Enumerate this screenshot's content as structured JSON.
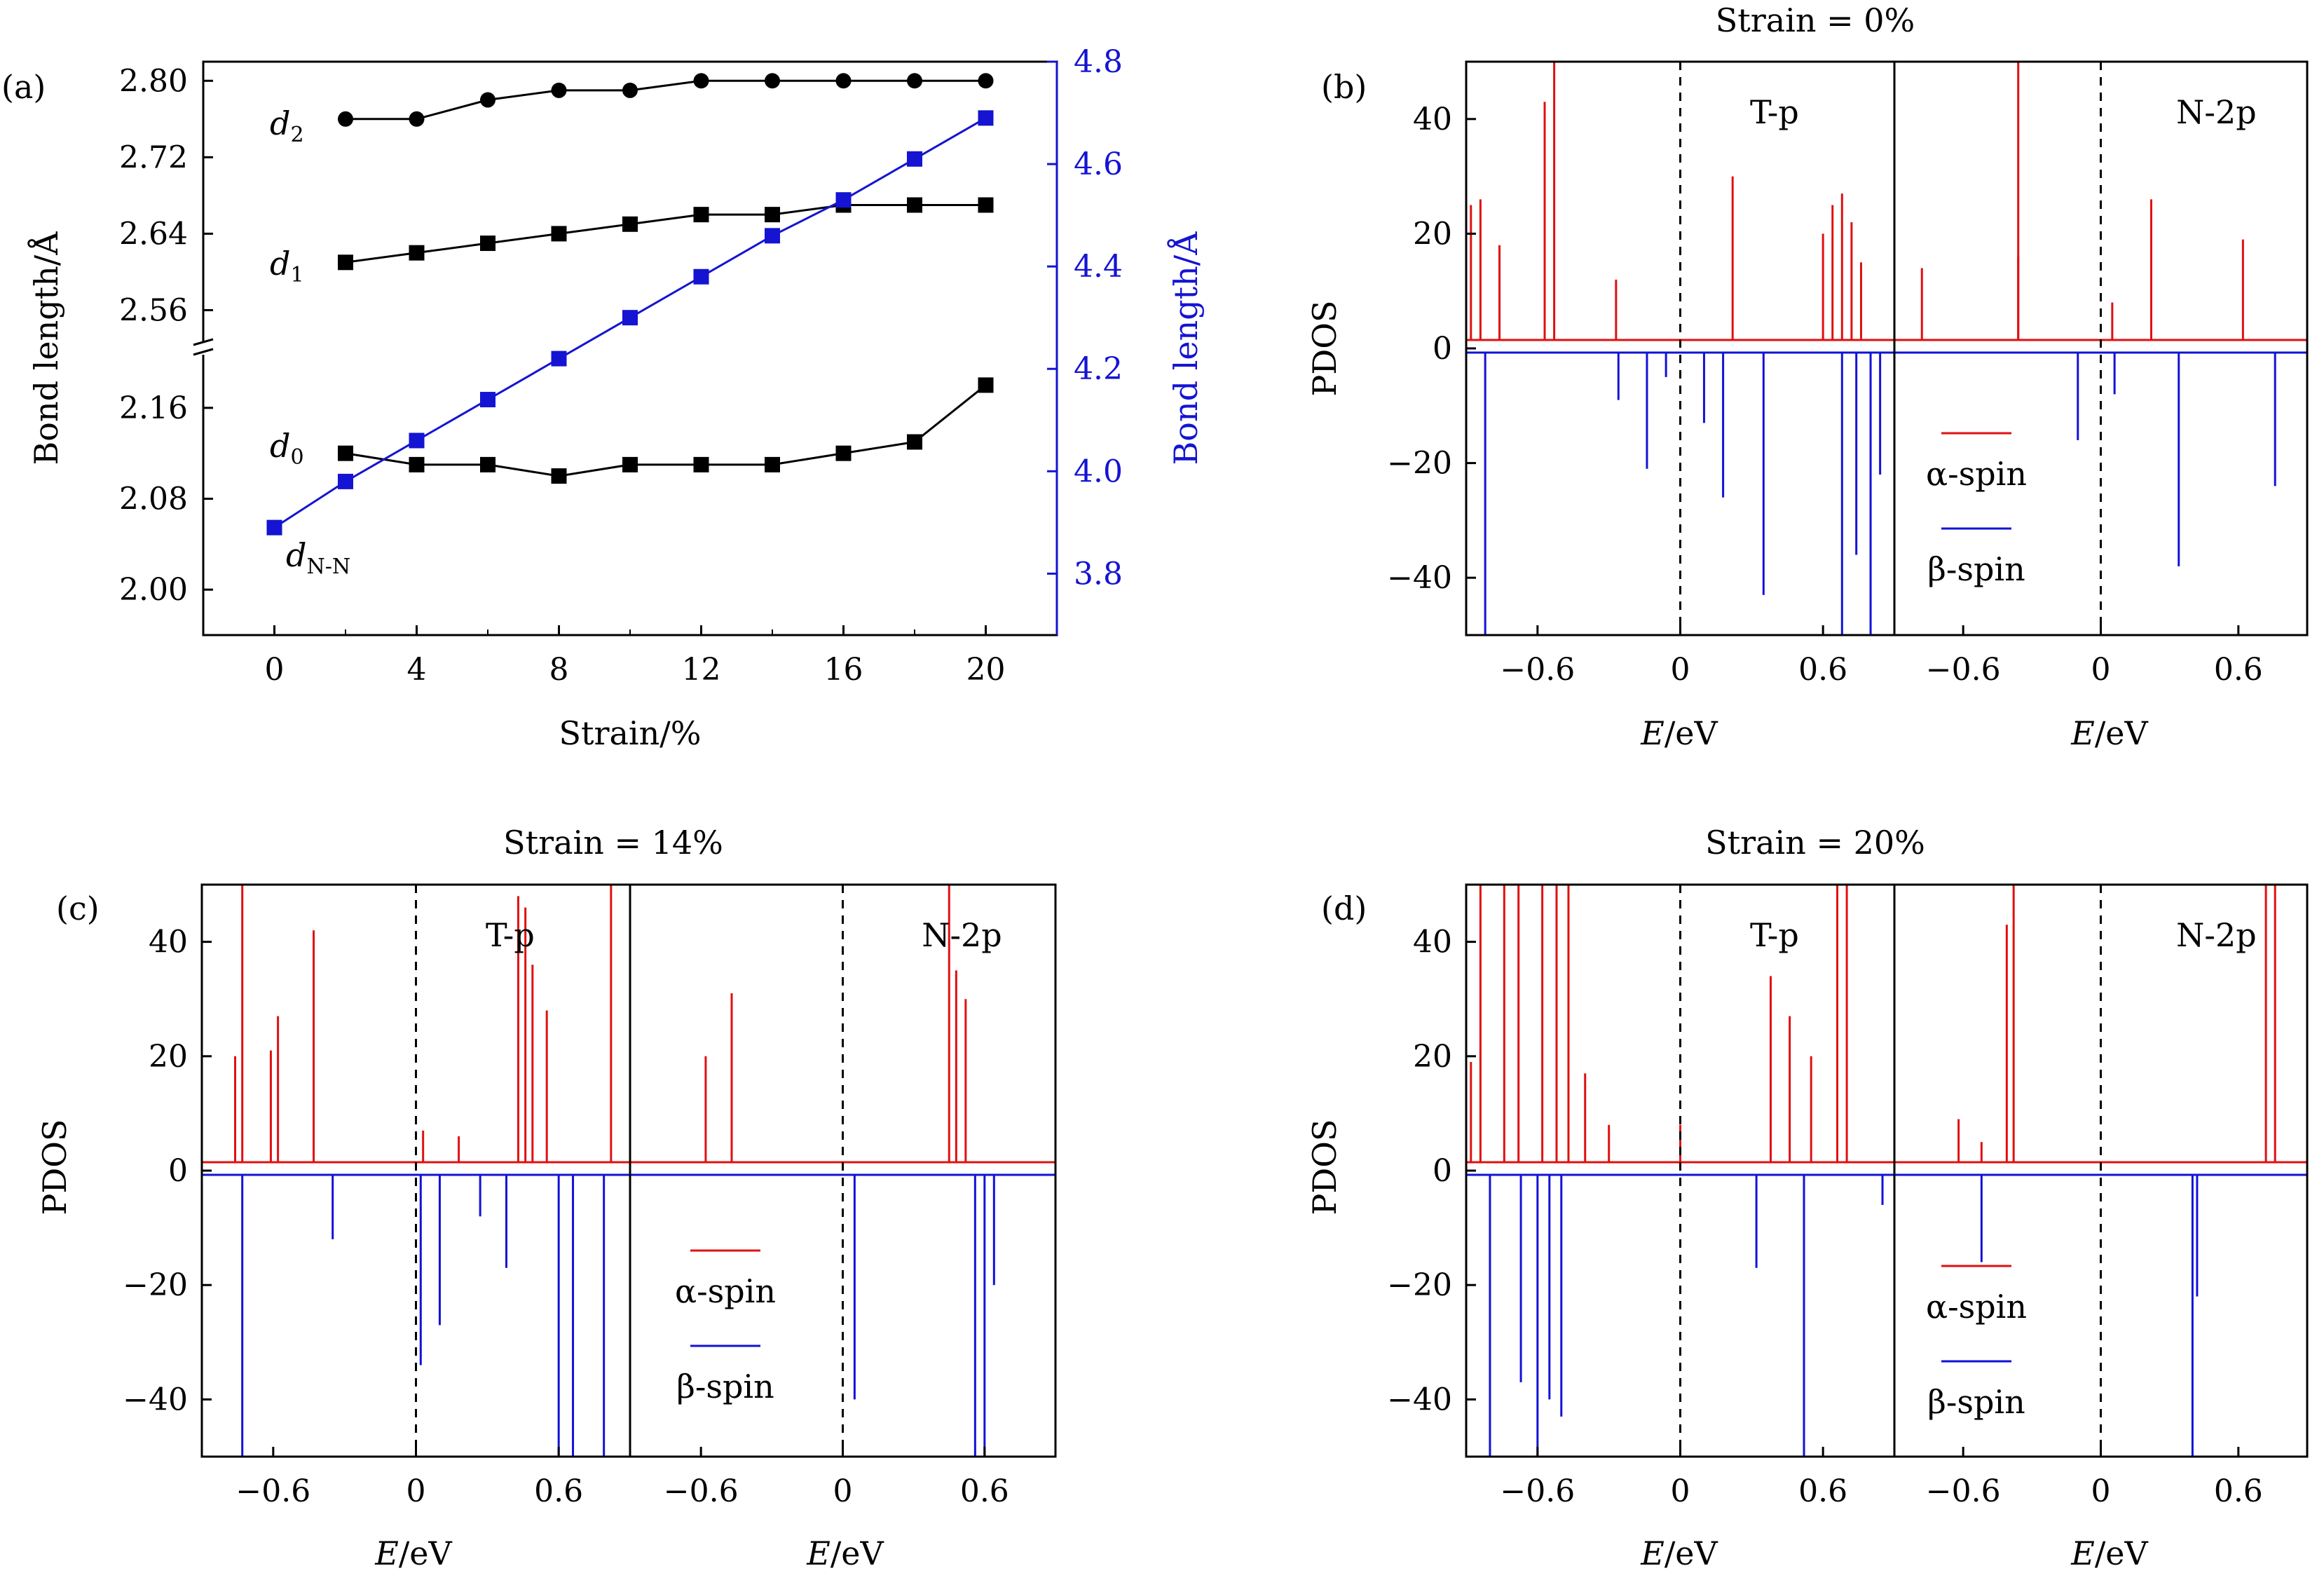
{
  "colors": {
    "alpha": "#e01010",
    "beta": "#1212d8",
    "bondblue": "#1414d2",
    "black": "#000000"
  },
  "chart_data": [
    {
      "panel": "(a)",
      "type": "line",
      "xlabel": "Strain/%",
      "ylabel_left": "Bond length/Å",
      "ylabel_right": "Bond length/Å",
      "x_ticks": [
        "0",
        "4",
        "8",
        "12",
        "16",
        "20"
      ],
      "y_left_ticks_upper": [
        "2.56",
        "2.64",
        "2.72",
        "2.80"
      ],
      "y_left_ticks_lower": [
        "2.00",
        "2.08",
        "2.16"
      ],
      "y_right_ticks": [
        "3.8",
        "4.0",
        "4.2",
        "4.4",
        "4.6",
        "4.8"
      ],
      "xlim": [
        -2,
        22
      ],
      "ylim_left_lower": [
        1.96,
        2.2
      ],
      "ylim_left_upper": [
        2.52,
        2.82
      ],
      "ylim_right": [
        3.68,
        4.8
      ],
      "grid": false,
      "series": [
        {
          "name": "d2",
          "marker": "circle",
          "axis": "left",
          "x": [
            2,
            4,
            6,
            8,
            10,
            12,
            14,
            16,
            18,
            20
          ],
          "values": [
            2.76,
            2.76,
            2.78,
            2.79,
            2.79,
            2.8,
            2.8,
            2.8,
            2.8,
            2.8
          ]
        },
        {
          "name": "d1",
          "marker": "square",
          "axis": "left",
          "x": [
            2,
            4,
            6,
            8,
            10,
            12,
            14,
            16,
            18,
            20
          ],
          "values": [
            2.61,
            2.62,
            2.63,
            2.64,
            2.65,
            2.66,
            2.66,
            2.67,
            2.67,
            2.67
          ]
        },
        {
          "name": "d0",
          "marker": "square",
          "axis": "left",
          "x": [
            2,
            4,
            6,
            8,
            10,
            12,
            14,
            16,
            18,
            20
          ],
          "values": [
            2.12,
            2.11,
            2.11,
            2.1,
            2.11,
            2.11,
            2.11,
            2.12,
            2.13,
            2.18
          ]
        },
        {
          "name": "dN-N",
          "marker": "square",
          "axis": "right",
          "x": [
            0,
            2,
            4,
            6,
            8,
            10,
            12,
            14,
            16,
            18,
            20
          ],
          "values": [
            3.89,
            3.98,
            4.06,
            4.14,
            4.22,
            4.3,
            4.38,
            4.46,
            4.53,
            4.61,
            4.69
          ]
        }
      ],
      "labels": [
        {
          "base": "d",
          "sub": "2"
        },
        {
          "base": "d",
          "sub": "1"
        },
        {
          "base": "d",
          "sub": "0"
        },
        {
          "base": "d",
          "sub": "N-N"
        }
      ]
    },
    {
      "panel": "(b)",
      "type": "line",
      "title": "Strain = 0%",
      "ylabel": "PDOS",
      "xlabel": "E/eV",
      "ylim": [
        -50,
        50
      ],
      "y_ticks": [
        "−40",
        "−20",
        "0",
        "20",
        "40"
      ],
      "x_ticks": [
        "−0.6",
        "0",
        "0.6"
      ],
      "xlim": [
        -0.9,
        0.9
      ],
      "subpanels": [
        {
          "label": "T-p",
          "alpha": [
            [
              -0.88,
              25
            ],
            [
              -0.84,
              26
            ],
            [
              -0.76,
              18
            ],
            [
              -0.57,
              43
            ],
            [
              -0.53,
              50
            ],
            [
              -0.27,
              12
            ],
            [
              0.22,
              30
            ],
            [
              0.6,
              20
            ],
            [
              0.64,
              25
            ],
            [
              0.68,
              27
            ],
            [
              0.72,
              22
            ],
            [
              0.76,
              15
            ]
          ],
          "beta": [
            [
              -0.82,
              -50
            ],
            [
              -0.26,
              -9
            ],
            [
              -0.14,
              -21
            ],
            [
              -0.06,
              -5
            ],
            [
              0.1,
              -13
            ],
            [
              0.18,
              -26
            ],
            [
              0.35,
              -43
            ],
            [
              0.68,
              -50
            ],
            [
              0.74,
              -36
            ],
            [
              0.8,
              -50
            ],
            [
              0.84,
              -22
            ]
          ]
        },
        {
          "label": "N-2p",
          "alpha": [
            [
              -0.78,
              14
            ],
            [
              -0.36,
              16
            ],
            [
              -0.36,
              50
            ],
            [
              0.05,
              8
            ],
            [
              0.22,
              26
            ],
            [
              0.62,
              19
            ]
          ],
          "beta": [
            [
              -0.1,
              -16
            ],
            [
              0.06,
              -8
            ],
            [
              0.34,
              -38
            ],
            [
              0.76,
              -24
            ]
          ]
        }
      ],
      "legend": [
        "α-spin",
        "β-spin"
      ]
    },
    {
      "panel": "(c)",
      "type": "line",
      "title": "Strain = 14%",
      "ylabel": "PDOS",
      "xlabel": "E/eV",
      "ylim": [
        -50,
        50
      ],
      "y_ticks": [
        "−40",
        "−20",
        "0",
        "20",
        "40"
      ],
      "x_ticks": [
        "−0.6",
        "0",
        "0.6"
      ],
      "xlim": [
        -0.9,
        0.9
      ],
      "subpanels": [
        {
          "label": "T-p",
          "alpha": [
            [
              -0.76,
              20
            ],
            [
              -0.73,
              50
            ],
            [
              -0.61,
              21
            ],
            [
              -0.58,
              27
            ],
            [
              -0.43,
              42
            ],
            [
              0.03,
              7
            ],
            [
              0.18,
              6
            ],
            [
              0.43,
              48
            ],
            [
              0.46,
              46
            ],
            [
              0.49,
              36
            ],
            [
              0.55,
              28
            ],
            [
              0.82,
              50
            ]
          ],
          "beta": [
            [
              -0.73,
              -50
            ],
            [
              -0.35,
              -12
            ],
            [
              0.02,
              -34
            ],
            [
              0.1,
              -27
            ],
            [
              0.27,
              -8
            ],
            [
              0.38,
              -17
            ],
            [
              0.6,
              -50
            ],
            [
              0.66,
              -50
            ],
            [
              0.79,
              -50
            ]
          ]
        },
        {
          "label": "N-2p",
          "alpha": [
            [
              -0.58,
              20
            ],
            [
              -0.47,
              31
            ],
            [
              0.45,
              50
            ],
            [
              0.48,
              35
            ],
            [
              0.52,
              30
            ]
          ],
          "beta": [
            [
              0.05,
              -40
            ],
            [
              0.56,
              -50
            ],
            [
              0.6,
              -50
            ],
            [
              0.64,
              -20
            ]
          ]
        }
      ],
      "legend": [
        "α-spin",
        "β-spin"
      ]
    },
    {
      "panel": "(d)",
      "type": "line",
      "title": "Strain = 20%",
      "ylabel": "PDOS",
      "xlabel": "E/eV",
      "ylim": [
        -50,
        50
      ],
      "y_ticks": [
        "−40",
        "−20",
        "0",
        "20",
        "40"
      ],
      "x_ticks": [
        "−0.6",
        "0",
        "0.6"
      ],
      "xlim": [
        -0.9,
        0.9
      ],
      "subpanels": [
        {
          "label": "T-p",
          "alpha": [
            [
              -0.88,
              19
            ],
            [
              -0.84,
              50
            ],
            [
              -0.74,
              50
            ],
            [
              -0.68,
              50
            ],
            [
              -0.58,
              50
            ],
            [
              -0.52,
              50
            ],
            [
              -0.47,
              50
            ],
            [
              -0.4,
              17
            ],
            [
              -0.3,
              8
            ],
            [
              0.0,
              8
            ],
            [
              0.38,
              34
            ],
            [
              0.46,
              27
            ],
            [
              0.55,
              20
            ],
            [
              0.66,
              50
            ],
            [
              0.7,
              50
            ]
          ],
          "beta": [
            [
              -0.8,
              -50
            ],
            [
              -0.67,
              -37
            ],
            [
              -0.6,
              -50
            ],
            [
              -0.55,
              -40
            ],
            [
              -0.5,
              -43
            ],
            [
              0.32,
              -17
            ],
            [
              0.52,
              -50
            ],
            [
              0.85,
              -6
            ]
          ]
        },
        {
          "label": "N-2p",
          "alpha": [
            [
              -0.62,
              9
            ],
            [
              -0.52,
              5
            ],
            [
              -0.41,
              43
            ],
            [
              -0.38,
              50
            ],
            [
              0.72,
              50
            ],
            [
              0.76,
              50
            ]
          ],
          "beta": [
            [
              -0.52,
              -16
            ],
            [
              0.4,
              -50
            ],
            [
              0.42,
              -22
            ]
          ]
        }
      ],
      "legend": [
        "α-spin",
        "β-spin"
      ]
    }
  ]
}
